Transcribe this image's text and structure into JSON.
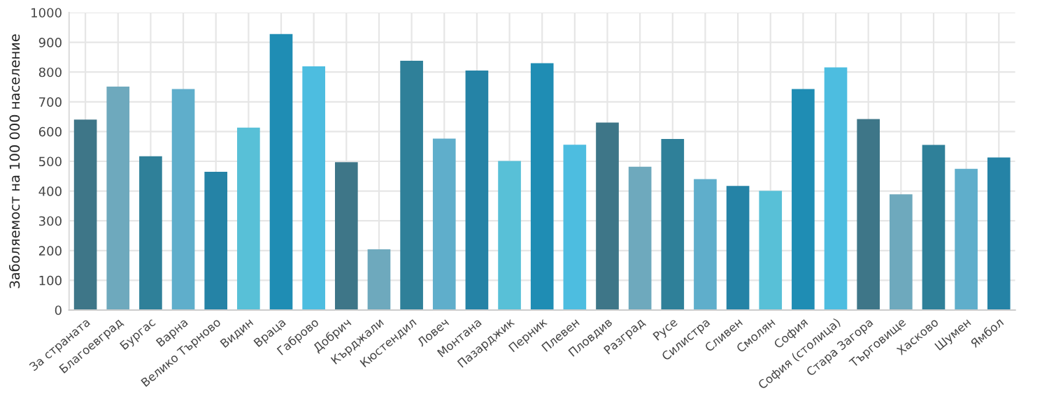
{
  "chart_data": {
    "type": "bar",
    "ylabel": "Заболяемост на 100 000 население",
    "categories": [
      "За страната",
      "Благоевград",
      "Бургас",
      "Варна",
      "Велико Търново",
      "Видин",
      "Враца",
      "Габрово",
      "Добрич",
      "Кърджали",
      "Кюстендил",
      "Ловеч",
      "Монтана",
      "Пазарджик",
      "Перник",
      "Плевен",
      "Пловдив",
      "Разград",
      "Русе",
      "Силистра",
      "Сливен",
      "Смолян",
      "София",
      "София (столица)",
      "Стара Загора",
      "Търговище",
      "Хасково",
      "Шумен",
      "Ямбол"
    ],
    "values": [
      640,
      751,
      517,
      743,
      465,
      613,
      928,
      819,
      497,
      204,
      838,
      576,
      805,
      501,
      830,
      556,
      630,
      482,
      575,
      440,
      417,
      401,
      743,
      816,
      642,
      389,
      555,
      475,
      513
    ],
    "colors": [
      "#3e7688",
      "#6ea9bd",
      "#2f8099",
      "#5faecb",
      "#2583a6",
      "#58c0d7",
      "#1f8db4",
      "#4dbde0",
      "#3e7688",
      "#6ea9bd",
      "#2f8099",
      "#5faecb",
      "#2583a6",
      "#58c0d7",
      "#1f8db4",
      "#4dbde0",
      "#3e7688",
      "#6ea9bd",
      "#2f8099",
      "#5faecb",
      "#2583a6",
      "#58c0d7",
      "#1f8db4",
      "#4dbde0",
      "#3e7688",
      "#6ea9bd",
      "#2f8099",
      "#5faecb",
      "#2583a6"
    ],
    "ylim": [
      0,
      1000
    ],
    "yticks": [
      0,
      100,
      200,
      300,
      400,
      500,
      600,
      700,
      800,
      900,
      1000
    ],
    "grid": true
  }
}
